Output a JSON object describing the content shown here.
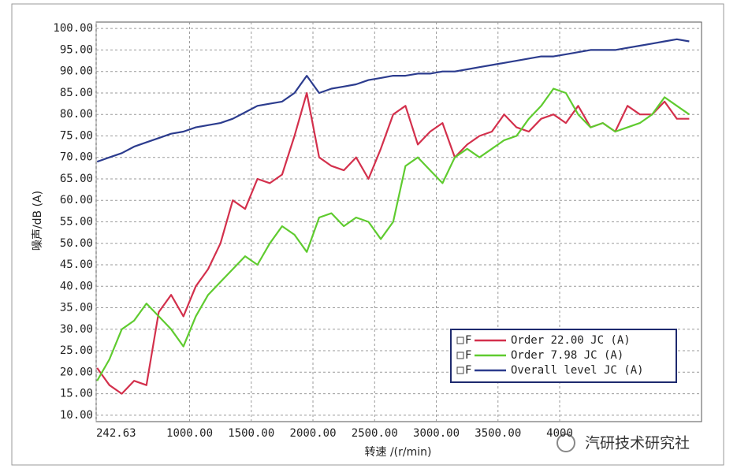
{
  "chart_data": {
    "type": "line",
    "y_label": "噪声/dB (A)",
    "x_label": "转速 /(r/min)",
    "watermark": "汽研技术研究社",
    "legend_marker_text": "F",
    "legend_position": "lower right",
    "grid": true,
    "xlim": [
      242.63,
      5150
    ],
    "ylim": [
      8.5,
      101.5
    ],
    "xticks": [
      242.63,
      {
        "value": 1000,
        "label": "1000.00"
      },
      {
        "value": 1500,
        "label": "1500.00"
      },
      {
        "value": 2000,
        "label": "2000.00"
      },
      {
        "value": 2500,
        "label": "2500.00"
      },
      {
        "value": 3000,
        "label": "3000.00"
      },
      {
        "value": 3500,
        "label": "3500.00"
      },
      {
        "value": 4000,
        "label": "4000"
      }
    ],
    "yticks": [
      {
        "value": 10,
        "label": "10.00"
      },
      {
        "value": 15,
        "label": "15.00"
      },
      {
        "value": 20,
        "label": "20.00"
      },
      {
        "value": 25,
        "label": "25.00"
      },
      {
        "value": 30,
        "label": "30.00"
      },
      {
        "value": 35,
        "label": "35.00"
      },
      {
        "value": 40,
        "label": "40.00"
      },
      {
        "value": 45,
        "label": "45.00"
      },
      {
        "value": 50,
        "label": "50.00"
      },
      {
        "value": 55,
        "label": "55.00"
      },
      {
        "value": 60,
        "label": "60.00"
      },
      {
        "value": 65,
        "label": "65.00"
      },
      {
        "value": 70,
        "label": "70.00"
      },
      {
        "value": 75,
        "label": "75.00"
      },
      {
        "value": 80,
        "label": "80.00"
      },
      {
        "value": 85,
        "label": "85.00"
      },
      {
        "value": 90,
        "label": "90.00"
      },
      {
        "value": 95,
        "label": "95.00"
      },
      {
        "value": 100,
        "label": "100.00"
      }
    ],
    "x": [
      250,
      350,
      450,
      550,
      650,
      750,
      850,
      950,
      1050,
      1150,
      1250,
      1350,
      1450,
      1550,
      1650,
      1750,
      1850,
      1950,
      2050,
      2150,
      2250,
      2350,
      2450,
      2550,
      2650,
      2750,
      2850,
      2950,
      3050,
      3150,
      3250,
      3350,
      3450,
      3550,
      3650,
      3750,
      3850,
      3950,
      4050,
      4150,
      4250,
      4350,
      4450,
      4550,
      4650,
      4750,
      4850,
      4950,
      5050
    ],
    "series": [
      {
        "name": "Order 22.00 JC (A)",
        "color": "#d3304c",
        "values": [
          21,
          17,
          15,
          18,
          17,
          34,
          38,
          33,
          40,
          44,
          50,
          60,
          58,
          65,
          64,
          66,
          75,
          85,
          70,
          68,
          67,
          70,
          65,
          72,
          80,
          82,
          73,
          76,
          78,
          70,
          73,
          75,
          76,
          80,
          77,
          76,
          79,
          80,
          78,
          82,
          77,
          78,
          76,
          82,
          80,
          80,
          83,
          79,
          79
        ]
      },
      {
        "name": "Order 7.98 JC (A)",
        "color": "#5fcb2f",
        "values": [
          18,
          23,
          30,
          32,
          36,
          33,
          30,
          26,
          33,
          38,
          41,
          44,
          47,
          45,
          50,
          54,
          52,
          48,
          56,
          57,
          54,
          56,
          55,
          51,
          55,
          68,
          70,
          67,
          64,
          70,
          72,
          70,
          72,
          74,
          75,
          79,
          82,
          86,
          85,
          80,
          77,
          78,
          76,
          77,
          78,
          80,
          84,
          82,
          80
        ]
      },
      {
        "name": "Overall level JC (A)",
        "color": "#2c3c8e",
        "values": [
          69,
          70,
          71,
          72.5,
          73.5,
          74.5,
          75.5,
          76,
          77,
          77.5,
          78,
          79,
          80.5,
          82,
          82.5,
          83,
          85,
          89,
          85,
          86,
          86.5,
          87,
          88,
          88.5,
          89,
          89,
          89.5,
          89.5,
          90,
          90,
          90.5,
          91,
          91.5,
          92,
          92.5,
          93,
          93.5,
          93.5,
          94,
          94.5,
          95,
          95,
          95,
          95.5,
          96,
          96.5,
          97,
          97.5,
          97
        ]
      }
    ]
  }
}
